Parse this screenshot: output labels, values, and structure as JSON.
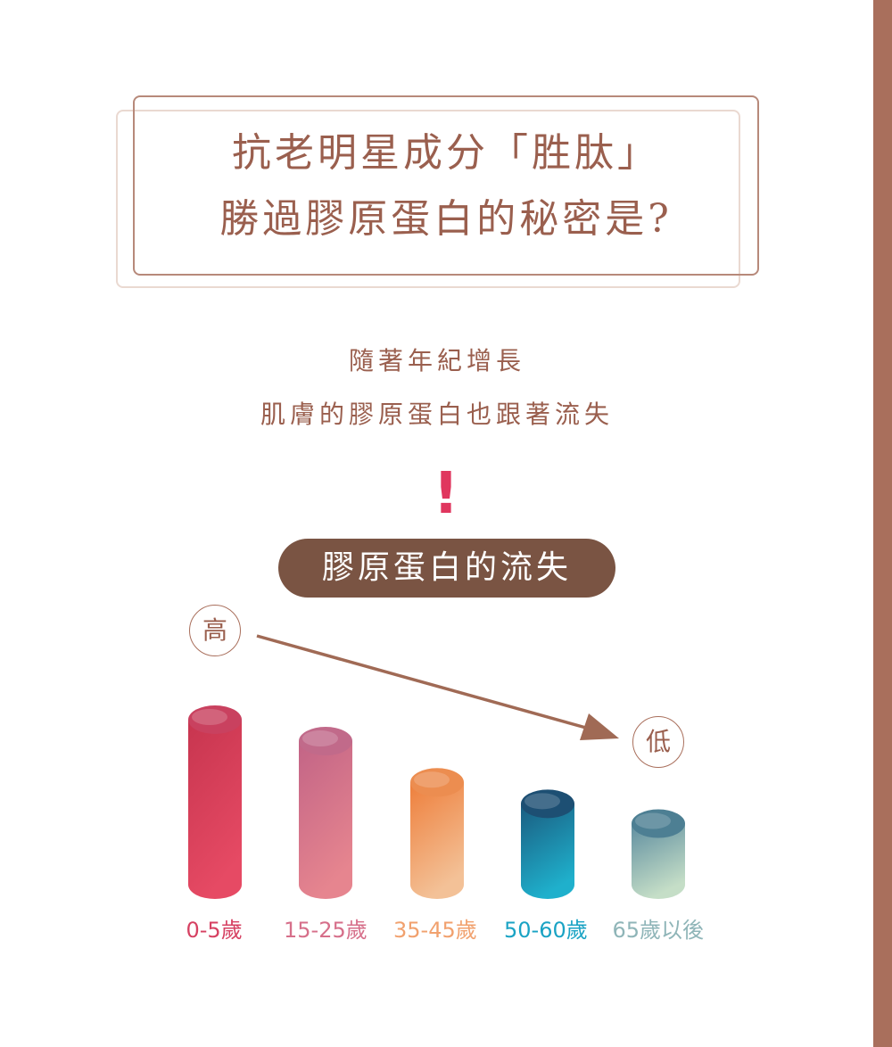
{
  "title": {
    "line1": "抗老明星成分「胜肽」",
    "line2": "勝過膠原蛋白的秘密是?"
  },
  "subtitle": {
    "line1": "隨著年紀增長",
    "line2": "肌膚的膠原蛋白也跟著流失"
  },
  "exclaim": "!",
  "pill_label": "膠原蛋白的流失",
  "high_label": "高",
  "low_label": "低",
  "colors": {
    "brand": "#9a5f4e",
    "pill": "#7a5443",
    "accent": "#e0365e",
    "sidebar": "#a96f5c"
  },
  "chart_data": {
    "type": "bar",
    "style": "3d-cylinder",
    "categories": [
      "0-5歲",
      "15-25歲",
      "35-45歲",
      "50-60歲",
      "65歲以後"
    ],
    "values": [
      100,
      87,
      62,
      49,
      37
    ],
    "ylim": [
      0,
      100
    ],
    "series_colors": [
      {
        "top": "#c9415f",
        "body_top": "#c7354f",
        "body_bottom": "#e64a64",
        "label": "#d64162"
      },
      {
        "top": "#c16a8a",
        "body_top": "#c26486",
        "body_bottom": "#e6858f",
        "label": "#d66f8a"
      },
      {
        "top": "#ec8d50",
        "body_top": "#ee7f3c",
        "body_bottom": "#f3c197",
        "label": "#f1a16e"
      },
      {
        "top": "#1d4f73",
        "body_top": "#1a5c80",
        "body_bottom": "#1fb0cc",
        "label": "#1aa3c4"
      },
      {
        "top": "#4d7f93",
        "body_top": "#5f8ea0",
        "body_bottom": "#c5dec7",
        "label": "#8fb5b8"
      }
    ],
    "trend": {
      "from": "高",
      "to": "低"
    }
  }
}
